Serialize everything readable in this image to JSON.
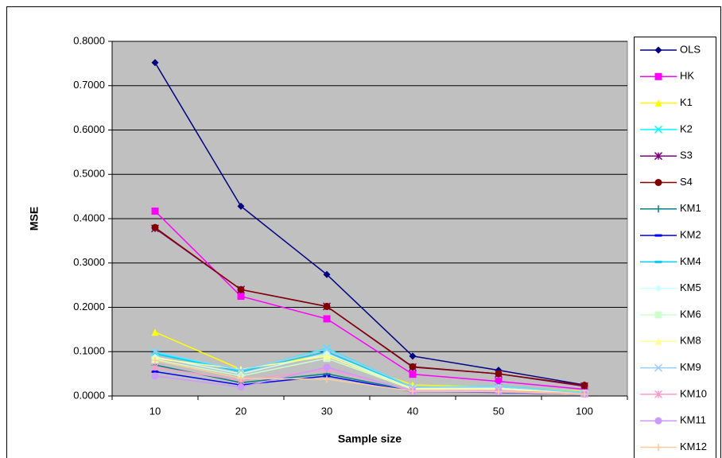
{
  "chart_data": {
    "type": "line",
    "x_label": "Sample size",
    "y_label": "MSE",
    "categories": [
      "10",
      "20",
      "30",
      "40",
      "50",
      "100"
    ],
    "ylim": [
      0,
      0.8
    ],
    "yticks": [
      {
        "value": 0,
        "label": "0.0000"
      },
      {
        "value": 0.1,
        "label": "0.1000"
      },
      {
        "value": 0.2,
        "label": "0.2000"
      },
      {
        "value": 0.3,
        "label": "0.3000"
      },
      {
        "value": 0.4,
        "label": "0.4000"
      },
      {
        "value": 0.5,
        "label": "0.5000"
      },
      {
        "value": 0.6,
        "label": "0.6000"
      },
      {
        "value": 0.7,
        "label": "0.7000"
      },
      {
        "value": 0.8,
        "label": "0.8000"
      }
    ],
    "grid": true,
    "legend": "right",
    "series": [
      {
        "name": "OLS",
        "color": "#000080",
        "marker": "diamond",
        "values": [
          0.752,
          0.428,
          0.274,
          0.09,
          0.058,
          0.025
        ]
      },
      {
        "name": "HK",
        "color": "#ff00ff",
        "marker": "square",
        "values": [
          0.417,
          0.225,
          0.174,
          0.049,
          0.033,
          0.015
        ]
      },
      {
        "name": "K1",
        "color": "#ffff00",
        "marker": "triangle",
        "values": [
          0.144,
          0.06,
          0.093,
          0.025,
          0.02,
          0.01
        ]
      },
      {
        "name": "K2",
        "color": "#00ffff",
        "marker": "x",
        "values": [
          0.098,
          0.057,
          0.107,
          0.02,
          0.022,
          0.008
        ]
      },
      {
        "name": "S3",
        "color": "#800080",
        "marker": "asterisk",
        "values": [
          0.378,
          0.24,
          0.202,
          0.065,
          0.05,
          0.022
        ]
      },
      {
        "name": "S4",
        "color": "#800000",
        "marker": "circle",
        "values": [
          0.38,
          0.24,
          0.202,
          0.066,
          0.05,
          0.024
        ]
      },
      {
        "name": "KM1",
        "color": "#008080",
        "marker": "plus",
        "values": [
          0.07,
          0.03,
          0.05,
          0.012,
          0.01,
          0.005
        ]
      },
      {
        "name": "KM2",
        "color": "#0000ff",
        "marker": "dash",
        "values": [
          0.055,
          0.025,
          0.045,
          0.01,
          0.008,
          0.004
        ]
      },
      {
        "name": "KM4",
        "color": "#00ccff",
        "marker": "dash",
        "values": [
          0.095,
          0.055,
          0.1,
          0.018,
          0.02,
          0.007
        ]
      },
      {
        "name": "KM5",
        "color": "#ccffff",
        "marker": "diamond",
        "values": [
          0.088,
          0.05,
          0.095,
          0.017,
          0.018,
          0.006
        ]
      },
      {
        "name": "KM6",
        "color": "#ccffcc",
        "marker": "square",
        "values": [
          0.082,
          0.045,
          0.085,
          0.015,
          0.015,
          0.006
        ]
      },
      {
        "name": "KM8",
        "color": "#ffff99",
        "marker": "triangle",
        "values": [
          0.085,
          0.06,
          0.09,
          0.016,
          0.016,
          0.006
        ]
      },
      {
        "name": "KM9",
        "color": "#99ccff",
        "marker": "x",
        "values": [
          0.1,
          0.058,
          0.105,
          0.02,
          0.021,
          0.007
        ]
      },
      {
        "name": "KM10",
        "color": "#ff99cc",
        "marker": "asterisk",
        "values": [
          0.065,
          0.035,
          0.06,
          0.012,
          0.012,
          0.005
        ]
      },
      {
        "name": "KM11",
        "color": "#cc99ff",
        "marker": "circle",
        "values": [
          0.045,
          0.02,
          0.065,
          0.01,
          0.009,
          0.004
        ]
      },
      {
        "name": "KM12",
        "color": "#ffcc99",
        "marker": "plus",
        "values": [
          0.08,
          0.04,
          0.038,
          0.011,
          0.01,
          0.004
        ]
      }
    ]
  }
}
